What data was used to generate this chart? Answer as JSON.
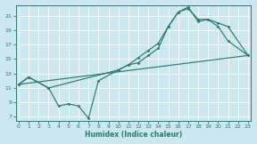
{
  "background_color": "#cce8ee",
  "grid_color": "#b0d5dc",
  "line_color": "#2a7a70",
  "xlim": [
    -0.3,
    23.3
  ],
  "ylim": [
    6.5,
    22.5
  ],
  "xticks": [
    0,
    1,
    2,
    3,
    4,
    5,
    6,
    7,
    8,
    9,
    10,
    11,
    12,
    13,
    14,
    15,
    16,
    17,
    18,
    19,
    20,
    21,
    22,
    23
  ],
  "yticks": [
    7,
    9,
    11,
    13,
    15,
    17,
    19,
    21
  ],
  "xlabel": "Humidex (Indice chaleur)",
  "series_main_x": [
    0,
    1,
    3,
    4,
    5,
    6,
    7,
    8,
    10,
    11,
    12,
    13,
    14,
    15,
    16,
    17,
    18,
    19,
    20,
    21,
    23
  ],
  "series_main_y": [
    11.5,
    12.5,
    11.0,
    8.5,
    8.8,
    8.5,
    6.8,
    12.0,
    13.5,
    14.2,
    14.5,
    15.5,
    16.5,
    19.5,
    21.5,
    22.0,
    20.5,
    20.5,
    19.5,
    17.5,
    15.5
  ],
  "series_upper_x": [
    0,
    1,
    3,
    10,
    11,
    12,
    13,
    14,
    15,
    16,
    17,
    18,
    19,
    20,
    21,
    23
  ],
  "series_upper_y": [
    11.5,
    12.5,
    11.0,
    13.5,
    14.2,
    15.2,
    16.2,
    17.2,
    19.5,
    21.5,
    22.2,
    20.2,
    20.5,
    20.0,
    19.5,
    15.5
  ],
  "line_x": [
    0,
    23
  ],
  "line_y": [
    11.5,
    15.5
  ]
}
